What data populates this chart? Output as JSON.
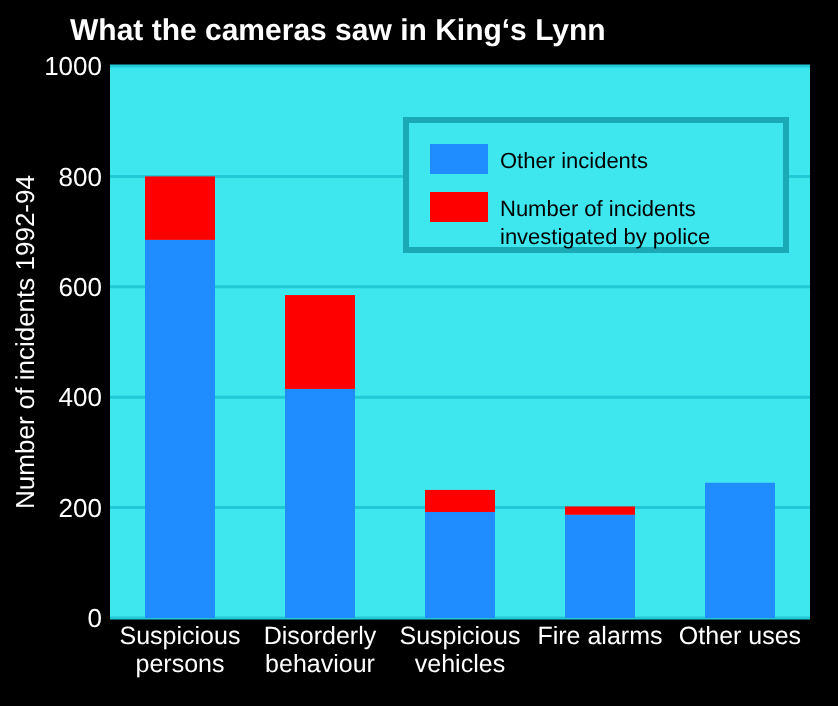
{
  "chart_data": {
    "type": "bar",
    "title": "What the cameras saw in King‘s Lynn",
    "ylabel": "Number of incidents 1992-94",
    "categories": [
      "Suspicious persons",
      "Disorderly behaviour",
      "Suspicious vehicles",
      "Fire alarms",
      "Other uses"
    ],
    "series": [
      {
        "name": "Other incidents",
        "color": "#1f8cff",
        "values": [
          685,
          415,
          192,
          187,
          245
        ]
      },
      {
        "name": "Number of incidents investigated by police",
        "color": "#ff0000",
        "values": [
          115,
          170,
          40,
          15,
          0
        ]
      }
    ],
    "stacked": true,
    "ylim": [
      0,
      1000
    ],
    "yticks": [
      0,
      200,
      400,
      600,
      800,
      1000
    ],
    "grid": "y",
    "legend": "top right"
  }
}
